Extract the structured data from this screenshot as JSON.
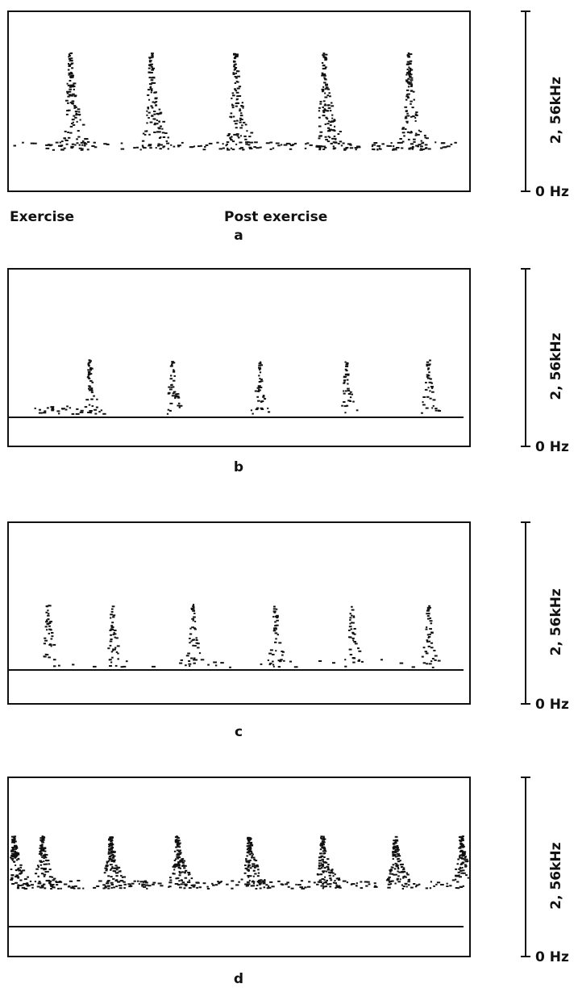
{
  "captions": {
    "exercise": "Exercise",
    "post_exercise": "Post exercise"
  },
  "panels": [
    {
      "label": "a",
      "scale_top": "2, 56kHz",
      "scale_bottom": "0 Hz"
    },
    {
      "label": "b",
      "scale_top": "2, 56kHz",
      "scale_bottom": "0 Hz"
    },
    {
      "label": "c",
      "scale_top": "2, 56kHz",
      "scale_bottom": "0 Hz"
    },
    {
      "label": "d",
      "scale_top": "2, 56kHz",
      "scale_bottom": "0 Hz"
    }
  ]
}
